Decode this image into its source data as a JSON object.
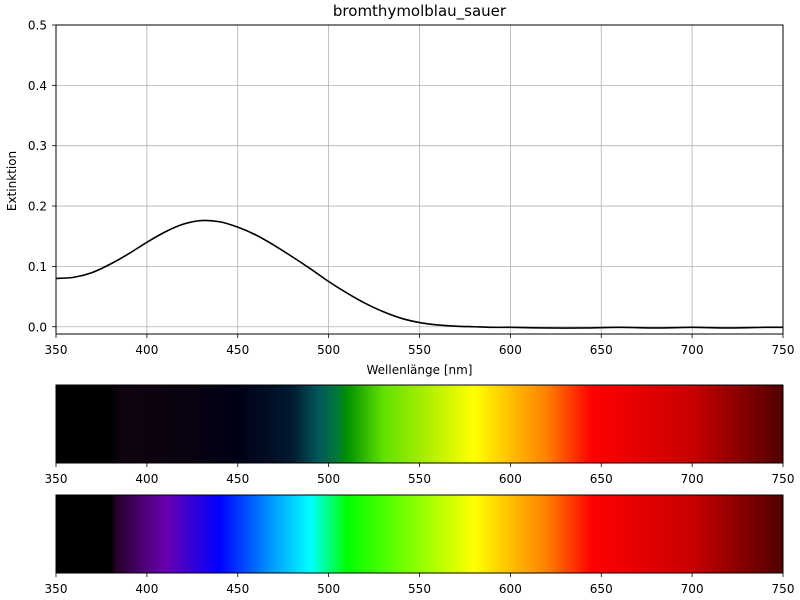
{
  "chart_data": [
    {
      "type": "line",
      "title": "bromthymolblau_sauer",
      "xlabel": "Wellenlänge [nm]",
      "ylabel": "Extinktion",
      "xlim": [
        350,
        750
      ],
      "ylim": [
        -0.012,
        0.5
      ],
      "grid": true,
      "xticks": [
        "350",
        "400",
        "450",
        "500",
        "550",
        "600",
        "650",
        "700",
        "750"
      ],
      "yticks": [
        "0.0",
        "0.1",
        "0.2",
        "0.3",
        "0.4",
        "0.5"
      ],
      "series": [
        {
          "color": "#000000",
          "x": [
            350,
            360,
            370,
            380,
            390,
            400,
            410,
            420,
            430,
            440,
            450,
            460,
            470,
            480,
            490,
            500,
            510,
            520,
            530,
            540,
            550,
            560,
            570,
            580,
            590,
            600,
            620,
            640,
            660,
            680,
            700,
            720,
            740,
            750
          ],
          "y": [
            0.08,
            0.082,
            0.09,
            0.104,
            0.121,
            0.14,
            0.157,
            0.17,
            0.176,
            0.174,
            0.165,
            0.152,
            0.135,
            0.116,
            0.096,
            0.075,
            0.056,
            0.039,
            0.025,
            0.014,
            0.007,
            0.003,
            0.001,
            0.0,
            -0.001,
            -0.001,
            -0.002,
            -0.002,
            -0.001,
            -0.002,
            -0.001,
            -0.002,
            -0.001,
            -0.001
          ]
        }
      ]
    },
    {
      "type": "heatmap",
      "description_of_role": "observed color spectrum strip",
      "xlim": [
        350,
        750
      ],
      "xticks": [
        "350",
        "400",
        "450",
        "500",
        "550",
        "600",
        "650",
        "700",
        "750"
      ],
      "stops": [
        {
          "x": 350,
          "color": "#000000"
        },
        {
          "x": 380,
          "color": "#000000"
        },
        {
          "x": 385,
          "color": "#0f030f"
        },
        {
          "x": 420,
          "color": "#0a0210"
        },
        {
          "x": 450,
          "color": "#000016"
        },
        {
          "x": 480,
          "color": "#001a30"
        },
        {
          "x": 495,
          "color": "#005a5a"
        },
        {
          "x": 505,
          "color": "#007a35"
        },
        {
          "x": 510,
          "color": "#009000"
        },
        {
          "x": 530,
          "color": "#60e000"
        },
        {
          "x": 580,
          "color": "#ffff00"
        },
        {
          "x": 620,
          "color": "#ff8000"
        },
        {
          "x": 645,
          "color": "#ff0000"
        },
        {
          "x": 700,
          "color": "#c80000"
        },
        {
          "x": 750,
          "color": "#500000"
        }
      ]
    },
    {
      "type": "heatmap",
      "description_of_role": "reference visible spectrum strip",
      "xlim": [
        350,
        750
      ],
      "xticks": [
        "350",
        "400",
        "450",
        "500",
        "550",
        "600",
        "650",
        "700",
        "750"
      ],
      "stops": [
        {
          "x": 350,
          "color": "#000000"
        },
        {
          "x": 380,
          "color": "#000000"
        },
        {
          "x": 383,
          "color": "#250028"
        },
        {
          "x": 410,
          "color": "#6a00b0"
        },
        {
          "x": 440,
          "color": "#0000ff"
        },
        {
          "x": 470,
          "color": "#00a0ff"
        },
        {
          "x": 490,
          "color": "#00ffff"
        },
        {
          "x": 510,
          "color": "#00ff00"
        },
        {
          "x": 580,
          "color": "#ffff00"
        },
        {
          "x": 620,
          "color": "#ff8000"
        },
        {
          "x": 645,
          "color": "#ff0000"
        },
        {
          "x": 700,
          "color": "#c80000"
        },
        {
          "x": 750,
          "color": "#500000"
        }
      ]
    }
  ]
}
